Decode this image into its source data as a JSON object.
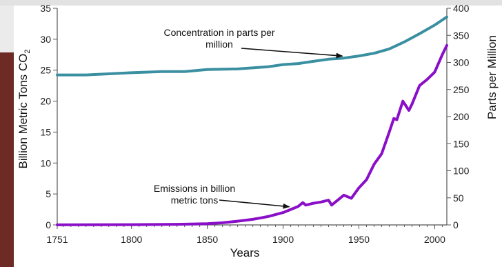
{
  "chart_data": {
    "type": "line",
    "xlabel": "Years",
    "ylabel_left": "Billion Metric Tons CO",
    "ylabel_left_sub": "2",
    "ylabel_right": "Parts per Million",
    "xlim": [
      1751,
      2008
    ],
    "ylim_left": [
      0,
      35
    ],
    "ylim_right": [
      0,
      400
    ],
    "x_ticks": [
      1751,
      1800,
      1850,
      1900,
      1950,
      2000
    ],
    "y_ticks_left": [
      0,
      5,
      10,
      15,
      20,
      25,
      30,
      35
    ],
    "y_ticks_right": [
      0,
      50,
      100,
      150,
      200,
      250,
      300,
      350,
      400
    ],
    "grid": false,
    "series": [
      {
        "name": "Concentration in parts per million",
        "axis": "right",
        "color": "#3a8fa0",
        "x": [
          1751,
          1770,
          1800,
          1820,
          1835,
          1850,
          1870,
          1890,
          1900,
          1910,
          1920,
          1930,
          1940,
          1950,
          1960,
          1970,
          1980,
          1990,
          2000,
          2008
        ],
        "y": [
          277,
          277,
          281,
          283,
          283,
          287,
          288,
          292,
          296,
          298,
          302,
          306,
          308,
          312,
          317,
          325,
          338,
          353,
          369,
          384
        ]
      },
      {
        "name": "Emissions in billion metric tons",
        "axis": "left",
        "color": "#8a0fc8",
        "x": [
          1751,
          1800,
          1830,
          1850,
          1860,
          1870,
          1880,
          1890,
          1900,
          1905,
          1910,
          1913,
          1915,
          1920,
          1925,
          1930,
          1932,
          1935,
          1940,
          1945,
          1950,
          1955,
          1960,
          1965,
          1970,
          1973,
          1975,
          1979,
          1983,
          1985,
          1990,
          1995,
          2000,
          2005,
          2008
        ],
        "y": [
          0.01,
          0.04,
          0.1,
          0.2,
          0.35,
          0.6,
          0.9,
          1.35,
          2.0,
          2.5,
          3.0,
          3.6,
          3.2,
          3.5,
          3.7,
          4.0,
          3.2,
          3.8,
          4.8,
          4.3,
          6.0,
          7.3,
          9.8,
          11.5,
          15.0,
          17.2,
          17.0,
          20.0,
          18.5,
          19.5,
          22.5,
          23.5,
          24.7,
          27.5,
          29.0
        ]
      }
    ],
    "annotations": [
      {
        "text": [
          "Concentration in parts per",
          "million"
        ],
        "target": [
          1940,
          308
        ],
        "axis": "right"
      },
      {
        "text": [
          "Emissions in billion",
          "metric tons"
        ],
        "target": [
          1905,
          2.6
        ],
        "axis": "left"
      }
    ]
  }
}
